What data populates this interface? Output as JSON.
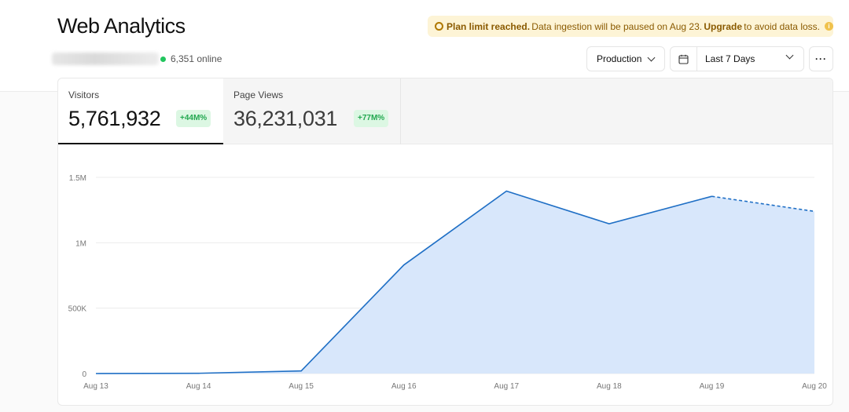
{
  "header": {
    "title": "Web Analytics",
    "online_count": "6,351 online"
  },
  "banner": {
    "bold_text": "Plan limit reached.",
    "message": "Data ingestion will be paused on Aug 23.",
    "link_text": "Upgrade",
    "suffix": "to avoid data loss.",
    "info_glyph": "i"
  },
  "controls": {
    "environment": "Production",
    "date_range": "Last 7 Days",
    "more_glyph": "···"
  },
  "metrics": [
    {
      "label": "Visitors",
      "value": "5,761,932",
      "delta": "+44M%"
    },
    {
      "label": "Page Views",
      "value": "36,231,031",
      "delta": "+77M%"
    }
  ],
  "colors": {
    "line": "#1f6fc5",
    "area": "#d8e7fb",
    "online_dot": "#22c55e",
    "banner_bg": "#fdf4d6",
    "delta_bg": "#dcf7e3",
    "delta_text": "#23a850"
  },
  "chart_data": {
    "type": "area",
    "x": [
      "Aug 13",
      "Aug 14",
      "Aug 15",
      "Aug 16",
      "Aug 17",
      "Aug 18",
      "Aug 19",
      "Aug 20"
    ],
    "y_ticks": [
      {
        "value": 0,
        "label": "0"
      },
      {
        "value": 500000,
        "label": "500K"
      },
      {
        "value": 1000000,
        "label": "1M"
      },
      {
        "value": 1500000,
        "label": "1.5M"
      }
    ],
    "ylim": [
      0,
      1500000
    ],
    "grid": true,
    "series": [
      {
        "values": [
          0,
          2000,
          20000,
          830000,
          1395000,
          1145000,
          1355000,
          1240000
        ],
        "projected_from_index": 6
      }
    ]
  }
}
